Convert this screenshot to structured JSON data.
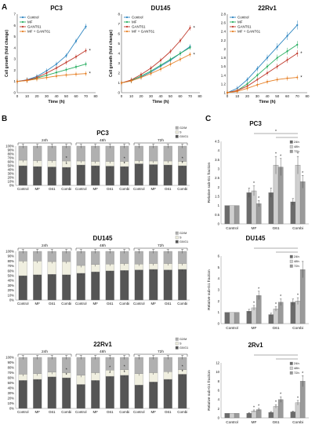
{
  "panel_letters": [
    "A",
    "B",
    "C"
  ],
  "chart_data": [
    {
      "id": "A1",
      "type": "line",
      "title": "PC3",
      "xlabel": "Time (h)",
      "ylabel": "Cell growth (fold change)",
      "x": [
        0,
        10,
        20,
        30,
        40,
        50,
        60,
        70
      ],
      "xlim": [
        0,
        80
      ],
      "ylim": [
        0,
        7
      ],
      "xticks": [
        0,
        10,
        20,
        30,
        40,
        50,
        60,
        70,
        80
      ],
      "yticks": [
        0,
        1,
        2,
        3,
        4,
        5,
        6,
        7
      ],
      "legend": "top-left",
      "grid": false,
      "series": [
        {
          "name": "Control",
          "color": "#2E86C1",
          "values": [
            1,
            1.15,
            1.45,
            1.95,
            2.55,
            3.3,
            4.6,
            5.9
          ]
        },
        {
          "name": "MF",
          "color": "#27AE60",
          "values": [
            1,
            1.1,
            1.3,
            1.55,
            1.8,
            2.05,
            2.3,
            2.55
          ]
        },
        {
          "name": "GANT61",
          "color": "#C0392B",
          "values": [
            1,
            1.12,
            1.35,
            1.75,
            2.2,
            2.7,
            3.2,
            3.75
          ]
        },
        {
          "name": "MF + GANT61",
          "color": "#E67E22",
          "values": [
            1,
            1.08,
            1.22,
            1.35,
            1.48,
            1.58,
            1.65,
            1.7
          ]
        }
      ],
      "annotations": [
        "*",
        "*"
      ]
    },
    {
      "id": "A2",
      "type": "line",
      "title": "DU145",
      "xlabel": "Time (h)",
      "ylabel": "Cell growth (fold change)",
      "x": [
        0,
        10,
        20,
        30,
        40,
        50,
        60,
        70
      ],
      "xlim": [
        0,
        80
      ],
      "ylim": [
        0,
        8
      ],
      "xticks": [
        0,
        10,
        20,
        30,
        40,
        50,
        60,
        70,
        80
      ],
      "yticks": [
        0,
        1,
        2,
        3,
        4,
        5,
        6,
        7,
        8
      ],
      "legend": "top-left",
      "grid": false,
      "series": [
        {
          "name": "Control",
          "color": "#2E86C1",
          "values": [
            1,
            1.2,
            1.6,
            2.1,
            2.7,
            3.3,
            4.0,
            4.7
          ]
        },
        {
          "name": "MF",
          "color": "#27AE60",
          "values": [
            1,
            1.25,
            1.7,
            2.2,
            2.8,
            3.4,
            4.0,
            4.6
          ]
        },
        {
          "name": "GANT61",
          "color": "#C0392B",
          "values": [
            1,
            1.3,
            1.85,
            2.5,
            3.3,
            4.2,
            5.3,
            6.6
          ]
        },
        {
          "name": "MF + GANT61",
          "color": "#E67E22",
          "values": [
            1,
            1.2,
            1.55,
            1.95,
            2.4,
            2.9,
            3.4,
            3.9
          ]
        }
      ],
      "annotations": [
        "*",
        "*"
      ]
    },
    {
      "id": "A3",
      "type": "line",
      "title": "22Rv1",
      "xlabel": "Time (h)",
      "ylabel": "",
      "x": [
        0,
        10,
        20,
        30,
        40,
        50,
        60,
        70
      ],
      "xlim": [
        0,
        80
      ],
      "ylim": [
        1,
        2.8
      ],
      "xticks": [
        0,
        10,
        20,
        30,
        40,
        50,
        60,
        70,
        80
      ],
      "yticks": [
        1,
        1.2,
        1.4,
        1.6,
        1.8,
        2,
        2.2,
        2.4,
        2.6,
        2.8
      ],
      "legend": "top-left",
      "grid": false,
      "series": [
        {
          "name": "Control",
          "color": "#2E86C1",
          "values": [
            1,
            1.1,
            1.3,
            1.55,
            1.8,
            2.05,
            2.3,
            2.55
          ]
        },
        {
          "name": "MF",
          "color": "#27AE60",
          "values": [
            1,
            1.05,
            1.2,
            1.4,
            1.6,
            1.8,
            1.95,
            2.1
          ]
        },
        {
          "name": "GANT61",
          "color": "#C0392B",
          "values": [
            1,
            1.05,
            1.15,
            1.3,
            1.45,
            1.6,
            1.75,
            1.9
          ]
        },
        {
          "name": "MF + GANT61",
          "color": "#E67E22",
          "values": [
            1,
            1.03,
            1.1,
            1.18,
            1.25,
            1.3,
            1.33,
            1.35
          ]
        }
      ],
      "annotations": [
        "*",
        "*"
      ]
    },
    {
      "id": "B1",
      "type": "bar",
      "stacked": true,
      "title": "PC3",
      "categories": [
        "Control",
        "MF",
        "G61",
        "Combi",
        "Control",
        "MF",
        "G61",
        "Combi",
        "Control",
        "MF",
        "G61",
        "Combi"
      ],
      "groups": [
        "24h",
        "48h",
        "72h"
      ],
      "yticks": [
        "0%",
        "10%",
        "20%",
        "30%",
        "40%",
        "50%",
        "60%",
        "70%",
        "80%",
        "90%",
        "100%"
      ],
      "ylim": [
        0,
        100
      ],
      "legend": "top-right",
      "series": [
        {
          "name": "G0/G1",
          "color": "#555555",
          "values": [
            50,
            48,
            47,
            46,
            52,
            50,
            49,
            48,
            55,
            53,
            52,
            50
          ]
        },
        {
          "name": "S",
          "color": "#f0efe0",
          "values": [
            14,
            15,
            16,
            16,
            10,
            11,
            12,
            13,
            8,
            9,
            10,
            11
          ]
        },
        {
          "name": "G2/M",
          "color": "#b0b0b0",
          "values": [
            36,
            37,
            37,
            38,
            38,
            39,
            39,
            39,
            37,
            38,
            38,
            39
          ]
        }
      ],
      "annotations": [
        "*",
        "*",
        "*",
        "*",
        "*",
        "*"
      ]
    },
    {
      "id": "B2",
      "type": "bar",
      "stacked": true,
      "title": "DU145",
      "categories": [
        "Control",
        "MF",
        "G61",
        "Combi",
        "Control",
        "MF",
        "G61",
        "Combi",
        "Control",
        "MF",
        "G61",
        "Combi"
      ],
      "groups": [
        "24h",
        "48h",
        "72h"
      ],
      "yticks": [
        "0%",
        "10%",
        "20%",
        "30%",
        "40%",
        "50%",
        "60%",
        "70%",
        "80%",
        "90%",
        "100%"
      ],
      "ylim": [
        0,
        100
      ],
      "legend": "top-right",
      "series": [
        {
          "name": "G0/G1",
          "color": "#555555",
          "values": [
            50,
            52,
            53,
            52,
            55,
            58,
            60,
            61,
            62,
            63,
            62,
            63
          ]
        },
        {
          "name": "S",
          "color": "#f0efe0",
          "values": [
            30,
            28,
            26,
            27,
            16,
            15,
            14,
            14,
            12,
            12,
            13,
            12
          ]
        },
        {
          "name": "G2/M",
          "color": "#b0b0b0",
          "values": [
            20,
            20,
            21,
            21,
            29,
            27,
            26,
            25,
            26,
            25,
            25,
            25
          ]
        }
      ],
      "annotations": []
    },
    {
      "id": "B3",
      "type": "bar",
      "stacked": true,
      "title": "22Rv1",
      "categories": [
        "Control",
        "MF",
        "G61",
        "Combi",
        "Control",
        "MF",
        "G61",
        "Combi",
        "Control",
        "MF",
        "G61",
        "Combi"
      ],
      "groups": [
        "24h",
        "48h",
        "72h"
      ],
      "yticks": [
        "0%",
        "10%",
        "20%",
        "30%",
        "40%",
        "50%",
        "60%",
        "70%",
        "80%",
        "90%",
        "100%"
      ],
      "ylim": [
        0,
        100
      ],
      "legend": "top-right",
      "series": [
        {
          "name": "G0/G1",
          "color": "#555555",
          "values": [
            55,
            57,
            62,
            60,
            47,
            55,
            63,
            65,
            46,
            52,
            57,
            67
          ]
        },
        {
          "name": "S",
          "color": "#f0efe0",
          "values": [
            12,
            11,
            9,
            10,
            18,
            15,
            12,
            11,
            22,
            18,
            15,
            9
          ]
        },
        {
          "name": "G2/M",
          "color": "#b0b0b0",
          "values": [
            33,
            32,
            29,
            30,
            35,
            30,
            25,
            24,
            32,
            30,
            28,
            24
          ]
        }
      ],
      "annotations": [
        "*",
        "*",
        "*",
        "*",
        "*",
        "*",
        "*",
        "*"
      ]
    },
    {
      "id": "C1",
      "type": "bar",
      "title": "PC3",
      "ylabel": "Relative sub-G1 fraction",
      "categories": [
        "Control",
        "MF",
        "G61",
        "Combi"
      ],
      "ylim": [
        0,
        4.5
      ],
      "yticks": [
        0,
        0.5,
        1,
        1.5,
        2,
        2.5,
        3,
        3.5,
        4,
        4.5
      ],
      "legend": "top-right",
      "series": [
        {
          "name": "24h",
          "color": "#6b6b6b",
          "values": [
            1,
            1.7,
            1.7,
            1.2
          ]
        },
        {
          "name": "48h",
          "color": "#cfcfcf",
          "values": [
            1,
            1.8,
            3.2,
            3.2
          ]
        },
        {
          "name": "72h",
          "color": "#9a9a9a",
          "values": [
            1,
            1.1,
            3.1,
            2.3
          ]
        }
      ],
      "annotations": [
        "*",
        "*",
        "*",
        "*",
        "*",
        "*",
        "*"
      ]
    },
    {
      "id": "C2",
      "type": "bar",
      "title": "DU145",
      "ylabel": "Relative sub-G1 fraction",
      "categories": [
        "Control",
        "MF",
        "G61",
        "Combi"
      ],
      "ylim": [
        0,
        6
      ],
      "yticks": [
        0,
        1,
        2,
        3,
        4,
        5,
        6
      ],
      "legend": "top-right",
      "series": [
        {
          "name": "24h",
          "color": "#6b6b6b",
          "values": [
            1,
            1.1,
            0.8,
            1.9
          ]
        },
        {
          "name": "48h",
          "color": "#cfcfcf",
          "values": [
            1,
            1.4,
            1.3,
            2.0
          ]
        },
        {
          "name": "72h",
          "color": "#9a9a9a",
          "values": [
            1,
            2.5,
            1.9,
            4.8
          ]
        }
      ],
      "annotations": [
        "*",
        "*",
        "*",
        "*",
        "*"
      ]
    },
    {
      "id": "C3",
      "type": "bar",
      "title": "2Rv1",
      "ylabel": "Relative sub-G1 fraction",
      "categories": [
        "Control",
        "MF",
        "G61",
        "Combi"
      ],
      "ylim": [
        0,
        12
      ],
      "yticks": [
        0,
        2,
        4,
        6,
        8,
        10,
        12
      ],
      "legend": "top-right",
      "series": [
        {
          "name": "24h",
          "color": "#6b6b6b",
          "values": [
            1,
            1.0,
            1.2,
            1.3
          ]
        },
        {
          "name": "48h",
          "color": "#cfcfcf",
          "values": [
            1,
            1.5,
            2.5,
            3.3
          ]
        },
        {
          "name": "72h",
          "color": "#9a9a9a",
          "values": [
            1,
            1.8,
            4.0,
            8.0
          ]
        }
      ],
      "annotations": [
        "*",
        "*",
        "*",
        "*",
        "*",
        "*"
      ]
    }
  ]
}
